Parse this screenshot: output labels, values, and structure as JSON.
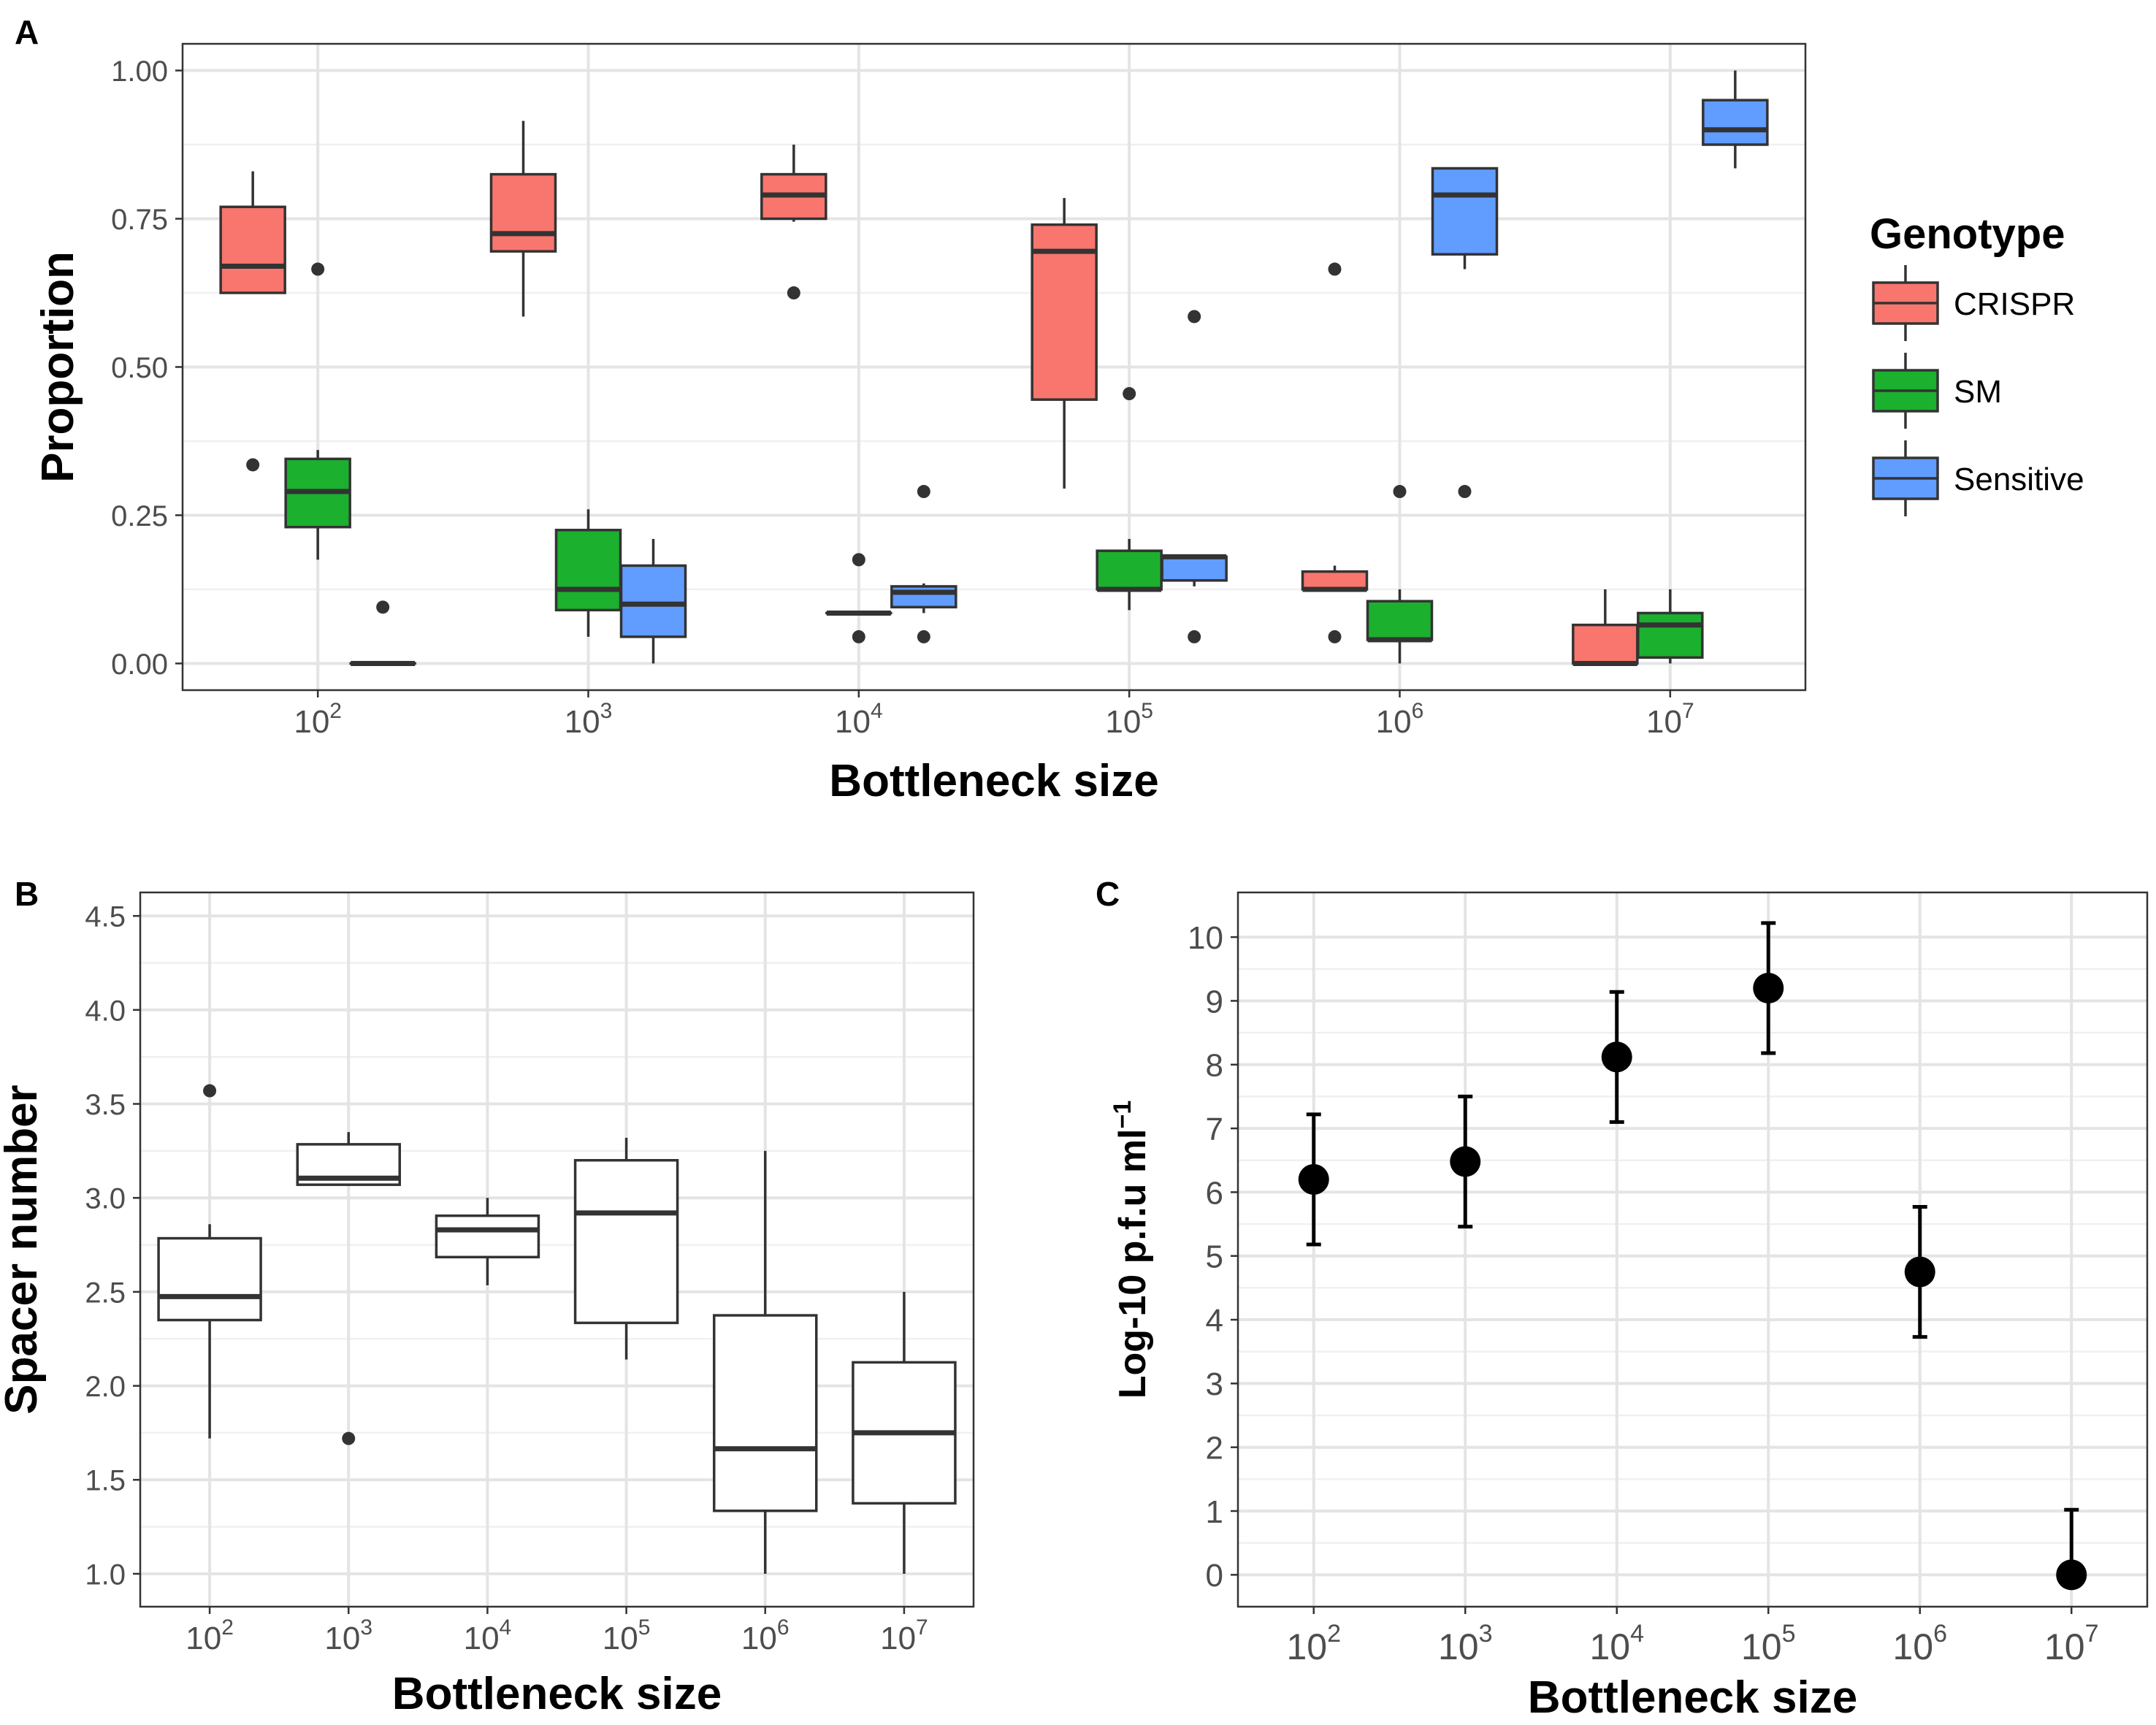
{
  "panel_labels": {
    "a": "A",
    "b": "B",
    "c": "C"
  },
  "legend": {
    "title": "Genotype",
    "items": [
      {
        "label": "CRISPR",
        "color": "#F8766D"
      },
      {
        "label": "SM",
        "color": "#1BB02E"
      },
      {
        "label": "Sensitive",
        "color": "#619CFF"
      }
    ]
  },
  "chart_data": [
    {
      "panel": "A",
      "type": "box",
      "xlabel": "Bottleneck size",
      "ylabel": "Proportion",
      "categories": [
        {
          "base": "10",
          "exp": "2"
        },
        {
          "base": "10",
          "exp": "3"
        },
        {
          "base": "10",
          "exp": "4"
        },
        {
          "base": "10",
          "exp": "5"
        },
        {
          "base": "10",
          "exp": "6"
        },
        {
          "base": "10",
          "exp": "7"
        }
      ],
      "ylim": [
        -0.045,
        1.045
      ],
      "yticks": [
        "0.00",
        "0.25",
        "0.50",
        "0.75",
        "1.00"
      ],
      "grid": true,
      "legend_position": "right",
      "series": [
        {
          "name": "CRISPR",
          "color": "#F8766D",
          "boxes": [
            {
              "q1": 0.625,
              "median": 0.67,
              "q3": 0.77,
              "low": 0.625,
              "high": 0.83,
              "outliers": [
                0.335
              ]
            },
            {
              "q1": 0.695,
              "median": 0.725,
              "q3": 0.825,
              "low": 0.585,
              "high": 0.915,
              "outliers": []
            },
            {
              "q1": 0.75,
              "median": 0.79,
              "q3": 0.825,
              "low": 0.745,
              "high": 0.875,
              "outliers": [
                0.625
              ]
            },
            {
              "q1": 0.445,
              "median": 0.695,
              "q3": 0.74,
              "low": 0.295,
              "high": 0.785,
              "outliers": []
            },
            {
              "q1": 0.125,
              "median": 0.125,
              "q3": 0.155,
              "low": 0.125,
              "high": 0.165,
              "outliers": [
                0.665,
                0.045
              ]
            },
            {
              "q1": 0.0,
              "median": 0.0,
              "q3": 0.065,
              "low": 0.0,
              "high": 0.125,
              "outliers": []
            }
          ]
        },
        {
          "name": "SM",
          "color": "#1BB02E",
          "boxes": [
            {
              "q1": 0.23,
              "median": 0.29,
              "q3": 0.345,
              "low": 0.175,
              "high": 0.36,
              "outliers": [
                0.665
              ]
            },
            {
              "q1": 0.09,
              "median": 0.125,
              "q3": 0.225,
              "low": 0.045,
              "high": 0.26,
              "outliers": []
            },
            {
              "q1": 0.085,
              "median": 0.085,
              "q3": 0.085,
              "low": 0.085,
              "high": 0.085,
              "outliers": [
                0.175,
                0.045
              ]
            },
            {
              "q1": 0.125,
              "median": 0.125,
              "q3": 0.19,
              "low": 0.09,
              "high": 0.21,
              "outliers": [
                0.455
              ]
            },
            {
              "q1": 0.04,
              "median": 0.04,
              "q3": 0.105,
              "low": 0.0,
              "high": 0.125,
              "outliers": [
                0.29
              ]
            },
            {
              "q1": 0.01,
              "median": 0.065,
              "q3": 0.085,
              "low": 0.0,
              "high": 0.125,
              "outliers": []
            }
          ]
        },
        {
          "name": "Sensitive",
          "color": "#619CFF",
          "boxes": [
            {
              "q1": 0.0,
              "median": 0.0,
              "q3": 0.0,
              "low": 0.0,
              "high": 0.0,
              "outliers": [
                0.095
              ]
            },
            {
              "q1": 0.045,
              "median": 0.1,
              "q3": 0.165,
              "low": 0.0,
              "high": 0.21,
              "outliers": []
            },
            {
              "q1": 0.095,
              "median": 0.12,
              "q3": 0.13,
              "low": 0.085,
              "high": 0.135,
              "outliers": [
                0.29,
                0.045
              ]
            },
            {
              "q1": 0.14,
              "median": 0.18,
              "q3": 0.18,
              "low": 0.13,
              "high": 0.18,
              "outliers": [
                0.585,
                0.045
              ]
            },
            {
              "q1": 0.69,
              "median": 0.79,
              "q3": 0.835,
              "low": 0.665,
              "high": 0.835,
              "outliers": [
                0.29
              ]
            },
            {
              "q1": 0.875,
              "median": 0.9,
              "q3": 0.95,
              "low": 0.835,
              "high": 1.0,
              "outliers": []
            }
          ]
        }
      ]
    },
    {
      "panel": "B",
      "type": "box",
      "xlabel": "Bottleneck size",
      "ylabel": "Spacer number",
      "categories": [
        {
          "base": "10",
          "exp": "2"
        },
        {
          "base": "10",
          "exp": "3"
        },
        {
          "base": "10",
          "exp": "4"
        },
        {
          "base": "10",
          "exp": "5"
        },
        {
          "base": "10",
          "exp": "6"
        },
        {
          "base": "10",
          "exp": "7"
        }
      ],
      "ylim": [
        0.825,
        4.625
      ],
      "yticks": [
        "1.0",
        "1.5",
        "2.0",
        "2.5",
        "3.0",
        "3.5",
        "4.0",
        "4.5"
      ],
      "grid": true,
      "boxes": [
        {
          "q1": 2.35,
          "median": 2.475,
          "q3": 2.785,
          "low": 1.72,
          "high": 2.86,
          "outliers": [
            3.57
          ]
        },
        {
          "q1": 3.07,
          "median": 3.105,
          "q3": 3.285,
          "low": 3.07,
          "high": 3.35,
          "outliers": [
            1.72
          ]
        },
        {
          "q1": 2.685,
          "median": 2.83,
          "q3": 2.905,
          "low": 2.535,
          "high": 3.0,
          "outliers": []
        },
        {
          "q1": 2.335,
          "median": 2.92,
          "q3": 3.2,
          "low": 2.14,
          "high": 3.32,
          "outliers": []
        },
        {
          "q1": 1.335,
          "median": 1.665,
          "q3": 2.375,
          "low": 1.0,
          "high": 3.25,
          "outliers": []
        },
        {
          "q1": 1.375,
          "median": 1.75,
          "q3": 2.125,
          "low": 1.0,
          "high": 2.5,
          "outliers": []
        }
      ]
    },
    {
      "panel": "C",
      "type": "scatter",
      "xlabel": "Bottleneck size",
      "ylabel": {
        "main": "Log-10 p.f.u ml",
        "sup": "−1"
      },
      "categories": [
        {
          "base": "10",
          "exp": "2"
        },
        {
          "base": "10",
          "exp": "3"
        },
        {
          "base": "10",
          "exp": "4"
        },
        {
          "base": "10",
          "exp": "5"
        },
        {
          "base": "10",
          "exp": "6"
        },
        {
          "base": "10",
          "exp": "7"
        }
      ],
      "ylim": [
        -0.5,
        10.7
      ],
      "yticks": [
        "0",
        "1",
        "2",
        "3",
        "4",
        "5",
        "6",
        "7",
        "8",
        "9",
        "10"
      ],
      "grid": true,
      "points": [
        {
          "y": 6.2,
          "low": 5.18,
          "high": 7.22
        },
        {
          "y": 6.48,
          "low": 5.46,
          "high": 7.5
        },
        {
          "y": 8.12,
          "low": 7.1,
          "high": 9.14
        },
        {
          "y": 9.2,
          "low": 8.18,
          "high": 10.22
        },
        {
          "y": 4.75,
          "low": 3.73,
          "high": 5.77
        },
        {
          "y": 0.0,
          "low": 0.0,
          "high": 1.02
        }
      ]
    }
  ]
}
